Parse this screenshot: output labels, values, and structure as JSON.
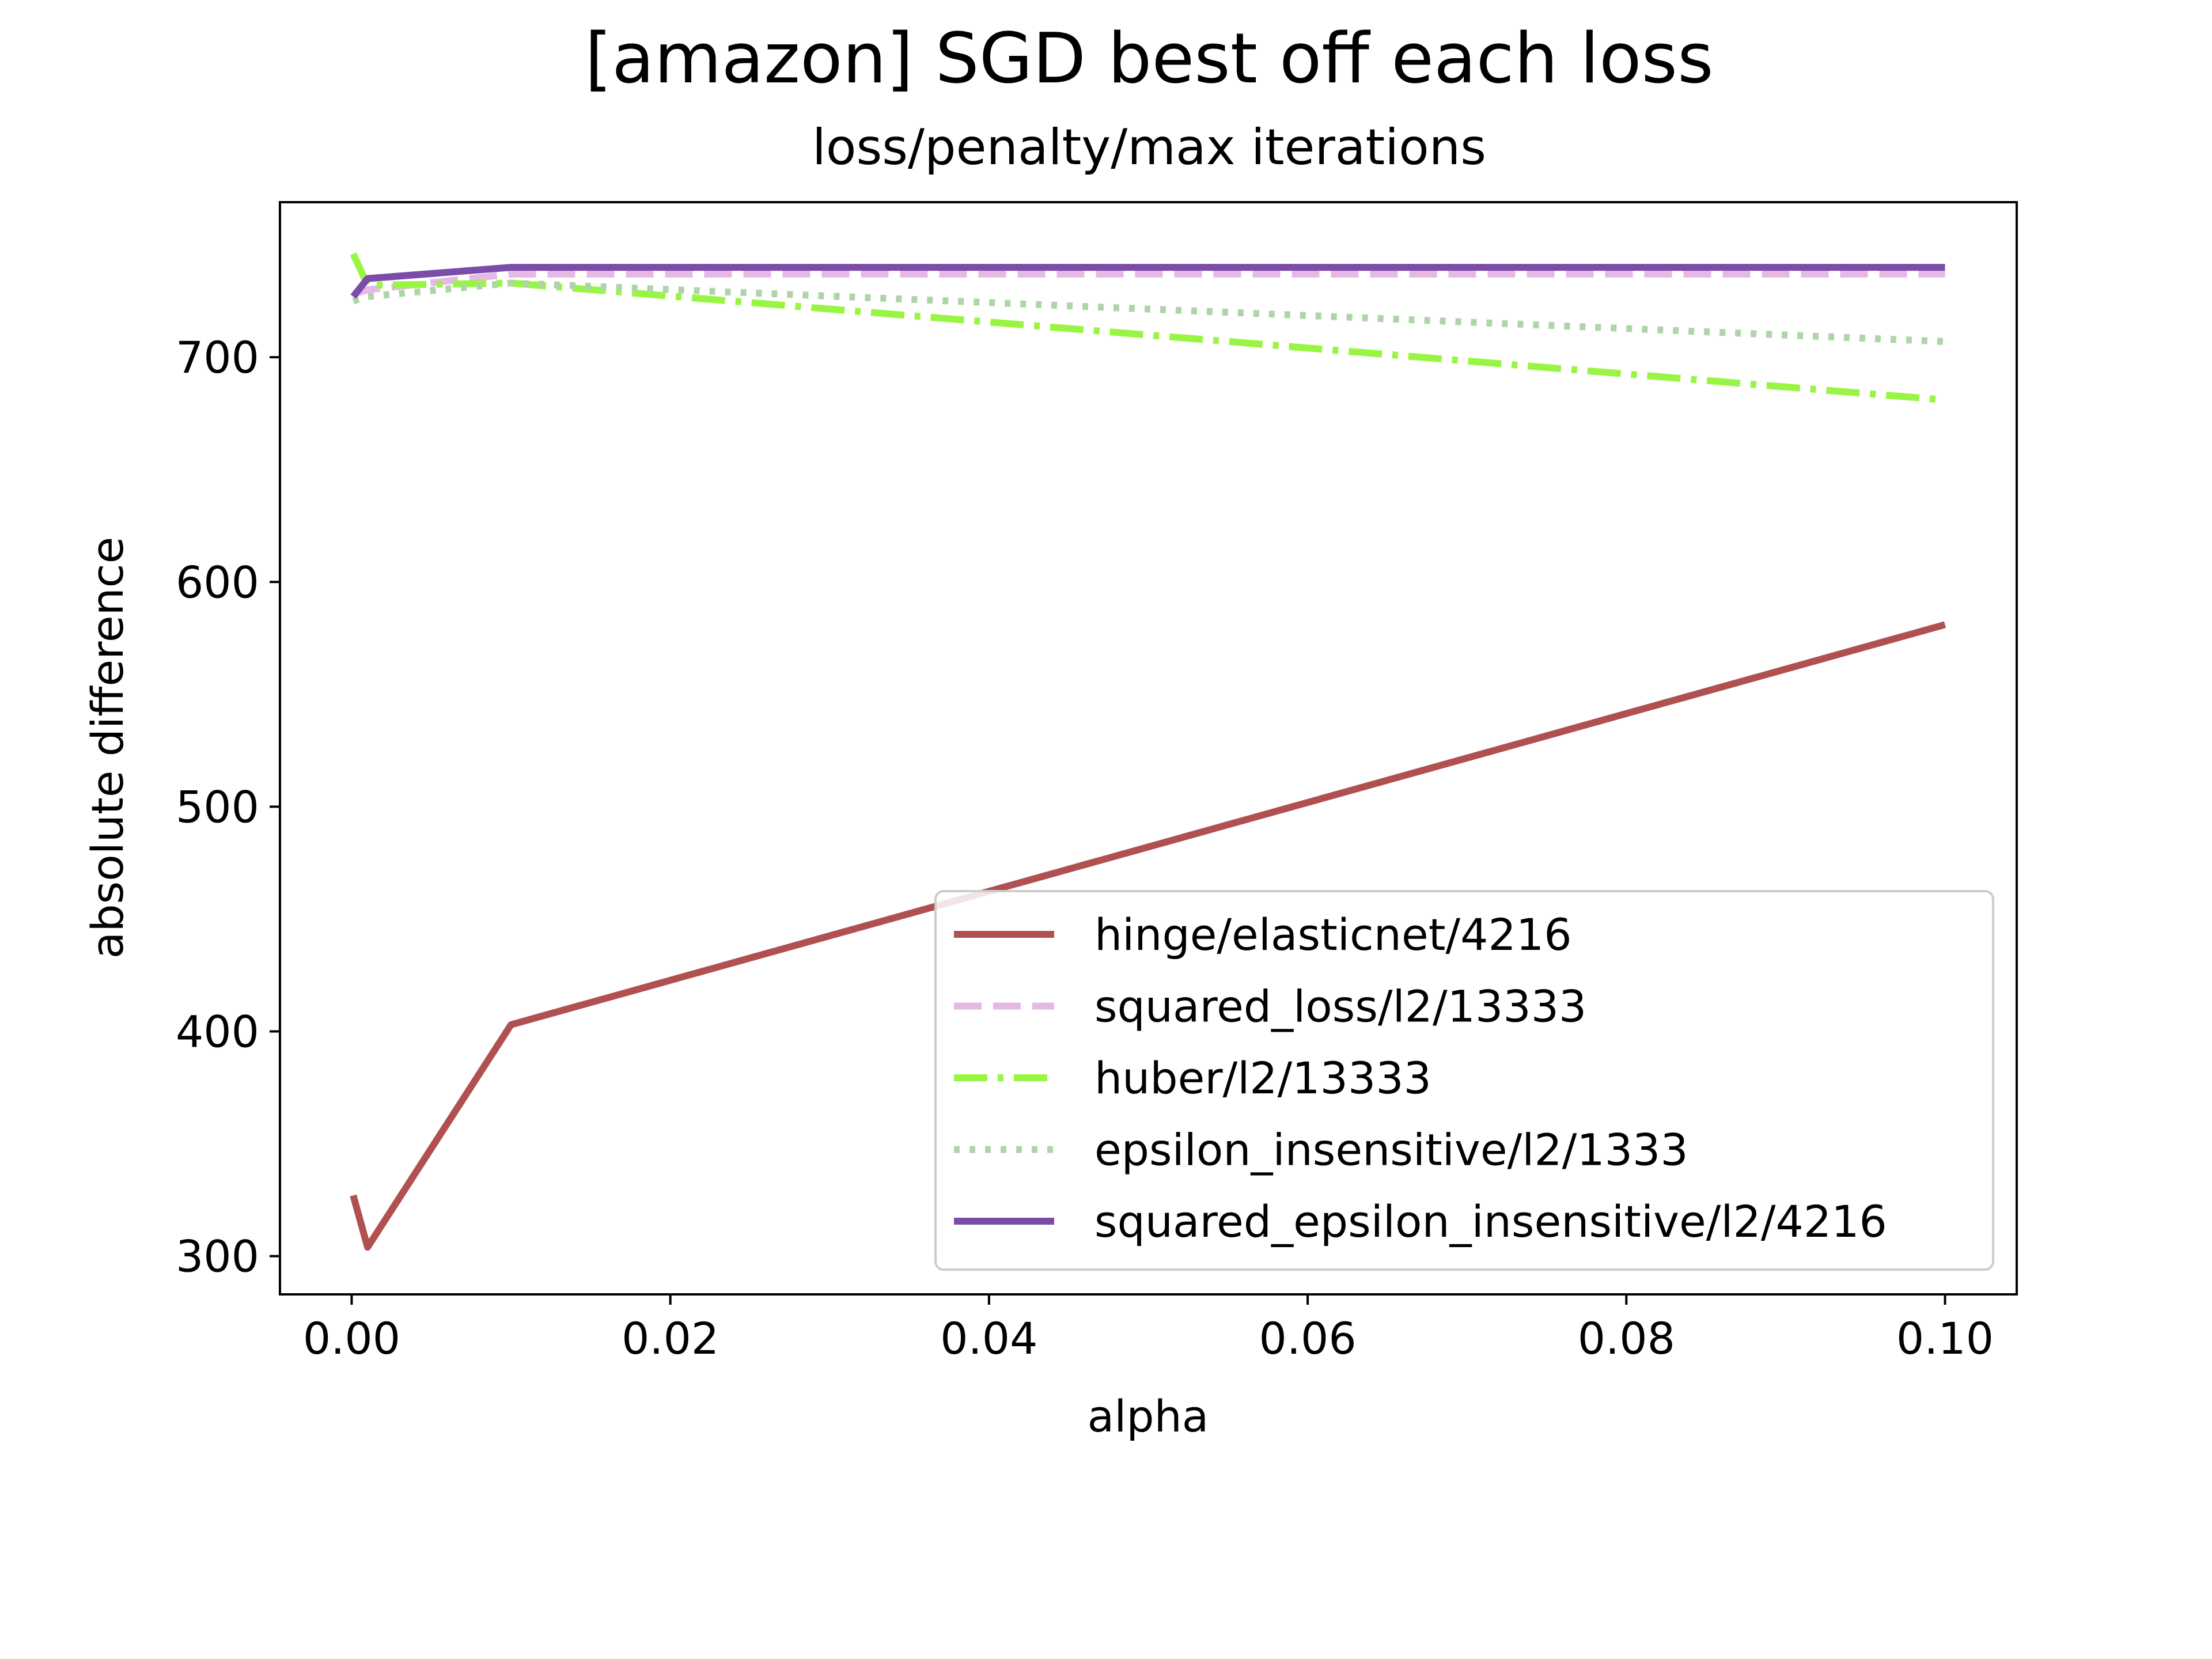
{
  "chart_data": {
    "type": "line",
    "title": "[amazon] SGD best off each loss",
    "subtitle": "loss/penalty/max iterations",
    "xlabel": "alpha",
    "ylabel": "absolute difference",
    "xlim": [
      -0.0045,
      0.1045
    ],
    "ylim": [
      283,
      769
    ],
    "xticks": [
      0.0,
      0.02,
      0.04,
      0.06,
      0.08,
      0.1
    ],
    "xtick_labels": [
      "0.00",
      "0.02",
      "0.04",
      "0.06",
      "0.08",
      "0.10"
    ],
    "yticks": [
      300,
      400,
      500,
      600,
      700
    ],
    "ytick_labels": [
      "300",
      "400",
      "500",
      "600",
      "700"
    ],
    "grid": false,
    "legend_position": "lower-right",
    "x": [
      0.0001,
      0.001,
      0.01,
      0.1
    ],
    "series": [
      {
        "name": "hinge/elasticnet/4216",
        "values": [
          327,
          304,
          403,
          581
        ],
        "color": "#b05050",
        "dash": "solid"
      },
      {
        "name": "squared_loss/l2/13333",
        "values": [
          728,
          730,
          737,
          737
        ],
        "color": "#e6b8e6",
        "dash": "dashed"
      },
      {
        "name": "huber/l2/13333",
        "values": [
          746,
          732,
          733,
          681
        ],
        "color": "#99f544",
        "dash": "dashdot"
      },
      {
        "name": "epsilon_insensitive/l2/1333",
        "values": [
          725,
          727,
          733,
          707
        ],
        "color": "#b0d4aa",
        "dash": "dotted"
      },
      {
        "name": "squared_epsilon_insensitive/l2/4216",
        "values": [
          727,
          735,
          740,
          740
        ],
        "color": "#7b4ca8",
        "dash": "solid"
      }
    ]
  }
}
